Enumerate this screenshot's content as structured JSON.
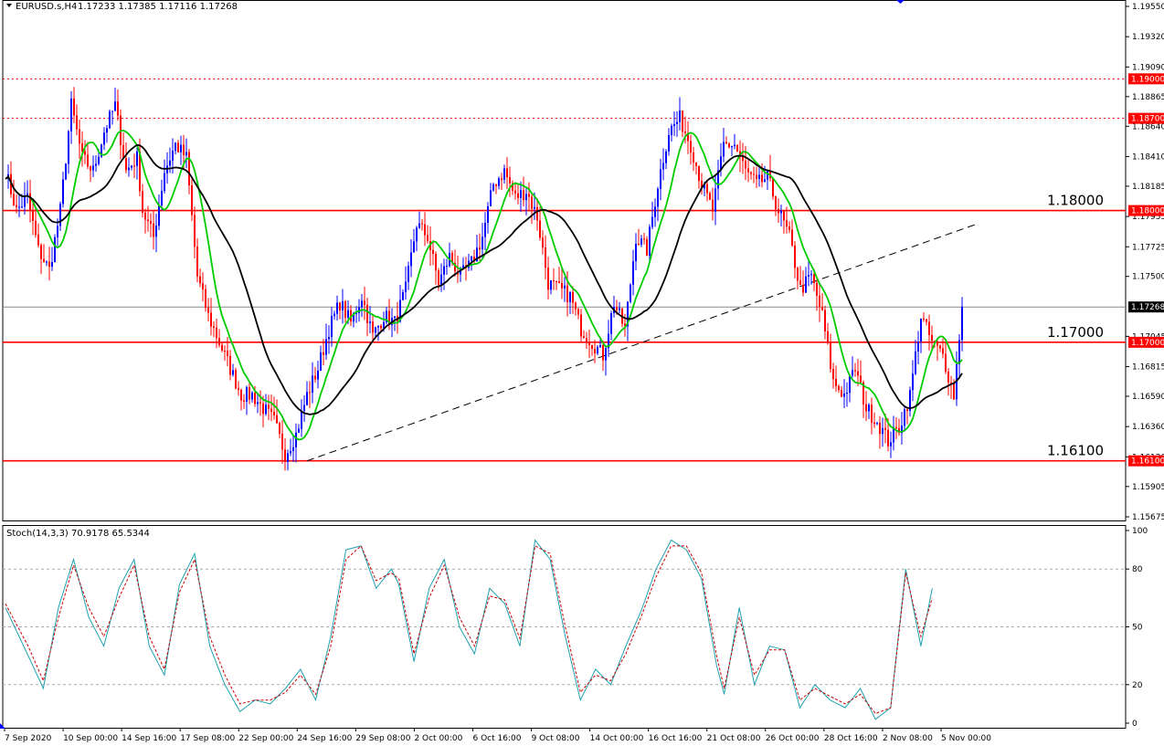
{
  "header": {
    "symbol": "EURUSD.s,H4",
    "ohlc": "1.17233 1.17385 1.17116 1.17268"
  },
  "indicator": {
    "label": "Stoch(14,3,3) 70.9178 65.5344",
    "main_value": 70.9178,
    "signal_value": 65.5344
  },
  "colors": {
    "bull": "#0000ff",
    "bear": "#ff0000",
    "ma_fast": "#00cc00",
    "ma_slow": "#000000",
    "level": "#ff0000",
    "stoch_main": "#20a0b0",
    "stoch_signal": "#cc0000"
  },
  "chart_data": [
    {
      "type": "candlestick",
      "ylim": [
        1.15675,
        1.1955
      ],
      "y_ticks": [
        "1.19550",
        "1.19320",
        "1.19090",
        "1.18865",
        "1.18640",
        "1.18410",
        "1.18185",
        "1.17955",
        "1.17725",
        "1.17500",
        "1.17045",
        "1.16815",
        "1.16590",
        "1.16360",
        "1.16130",
        "1.15905",
        "1.15675"
      ],
      "x_ticks": [
        "7 Sep 2020",
        "10 Sep 00:00",
        "14 Sep 16:00",
        "17 Sep 08:00",
        "22 Sep 00:00",
        "24 Sep 16:00",
        "29 Sep 08:00",
        "2 Oct 00:00",
        "6 Oct 16:00",
        "9 Oct 08:00",
        "14 Oct 00:00",
        "16 Oct 16:00",
        "21 Oct 08:00",
        "26 Oct 00:00",
        "28 Oct 16:00",
        "2 Nov 08:00",
        "5 Nov 00:00"
      ],
      "levels": [
        {
          "price": 1.19,
          "tag": "1.19000",
          "style": "dotted"
        },
        {
          "price": 1.187,
          "tag": "1.18700",
          "style": "dotted"
        },
        {
          "price": 1.18,
          "tag": "1.18000",
          "label": "1.18000",
          "style": "solid"
        },
        {
          "price": 1.17,
          "tag": "1.17000",
          "label": "1.17000",
          "style": "solid"
        },
        {
          "price": 1.161,
          "tag": "1.16100",
          "label": "1.16100",
          "style": "solid"
        }
      ],
      "current_price": {
        "price": 1.17268,
        "tag": "1.17268"
      },
      "trendline": {
        "from": {
          "x": "24 Sep 16:00",
          "y": 1.161
        },
        "to": {
          "x": "5 Nov 00:00",
          "y": 1.179
        }
      },
      "close_anchors": [
        [
          0,
          1.183
        ],
        [
          4,
          1.18
        ],
        [
          8,
          1.181
        ],
        [
          12,
          1.177
        ],
        [
          16,
          1.1755
        ],
        [
          20,
          1.18
        ],
        [
          24,
          1.188
        ],
        [
          28,
          1.184
        ],
        [
          32,
          1.183
        ],
        [
          36,
          1.186
        ],
        [
          40,
          1.188
        ],
        [
          44,
          1.183
        ],
        [
          48,
          1.184
        ],
        [
          50,
          1.18
        ],
        [
          54,
          1.178
        ],
        [
          58,
          1.183
        ],
        [
          62,
          1.185
        ],
        [
          66,
          1.184
        ],
        [
          70,
          1.175
        ],
        [
          74,
          1.172
        ],
        [
          78,
          1.17
        ],
        [
          82,
          1.168
        ],
        [
          86,
          1.166
        ],
        [
          90,
          1.166
        ],
        [
          94,
          1.165
        ],
        [
          98,
          1.164
        ],
        [
          102,
          1.1615
        ],
        [
          106,
          1.163
        ],
        [
          110,
          1.166
        ],
        [
          114,
          1.168
        ],
        [
          118,
          1.171
        ],
        [
          122,
          1.173
        ],
        [
          126,
          1.1715
        ],
        [
          130,
          1.1735
        ],
        [
          134,
          1.1705
        ],
        [
          138,
          1.172
        ],
        [
          142,
          1.1715
        ],
        [
          146,
          1.174
        ],
        [
          150,
          1.179
        ],
        [
          154,
          1.178
        ],
        [
          158,
          1.1745
        ],
        [
          162,
          1.1765
        ],
        [
          166,
          1.175
        ],
        [
          170,
          1.176
        ],
        [
          174,
          1.178
        ],
        [
          178,
          1.182
        ],
        [
          182,
          1.183
        ],
        [
          186,
          1.181
        ],
        [
          190,
          1.1815
        ],
        [
          194,
          1.1795
        ],
        [
          198,
          1.1745
        ],
        [
          202,
          1.174
        ],
        [
          206,
          1.1735
        ],
        [
          210,
          1.171
        ],
        [
          214,
          1.17
        ],
        [
          218,
          1.169
        ],
        [
          222,
          1.173
        ],
        [
          226,
          1.171
        ],
        [
          230,
          1.178
        ],
        [
          234,
          1.177
        ],
        [
          238,
          1.182
        ],
        [
          242,
          1.186
        ],
        [
          246,
          1.187
        ],
        [
          250,
          1.185
        ],
        [
          254,
          1.182
        ],
        [
          258,
          1.18
        ],
        [
          262,
          1.185
        ],
        [
          266,
          1.185
        ],
        [
          270,
          1.183
        ],
        [
          274,
          1.182
        ],
        [
          278,
          1.1825
        ],
        [
          282,
          1.18
        ],
        [
          286,
          1.178
        ],
        [
          290,
          1.174
        ],
        [
          294,
          1.175
        ],
        [
          298,
          1.172
        ],
        [
          302,
          1.167
        ],
        [
          306,
          1.166
        ],
        [
          310,
          1.168
        ],
        [
          314,
          1.165
        ],
        [
          318,
          1.164
        ],
        [
          322,
          1.1625
        ],
        [
          326,
          1.1635
        ],
        [
          330,
          1.166
        ],
        [
          334,
          1.172
        ],
        [
          338,
          1.17
        ],
        [
          342,
          1.169
        ],
        [
          346,
          1.166
        ],
        [
          349,
          1.1727
        ]
      ],
      "series": [
        {
          "name": "EURUSD.s,H4"
        }
      ]
    },
    {
      "type": "line",
      "ylim": [
        0,
        100
      ],
      "y_ticks": [
        "100",
        "80",
        "50",
        "20",
        "0"
      ],
      "dotted_levels": [
        80,
        50,
        20
      ],
      "series": [
        {
          "name": "Stoch main",
          "anchors": [
            [
              0,
              60
            ],
            [
              6,
              35
            ],
            [
              10,
              18
            ],
            [
              14,
              60
            ],
            [
              18,
              85
            ],
            [
              22,
              55
            ],
            [
              26,
              40
            ],
            [
              30,
              70
            ],
            [
              34,
              85
            ],
            [
              38,
              40
            ],
            [
              42,
              25
            ],
            [
              46,
              72
            ],
            [
              50,
              88
            ],
            [
              54,
              40
            ],
            [
              58,
              20
            ],
            [
              62,
              6
            ],
            [
              66,
              12
            ],
            [
              70,
              10
            ],
            [
              74,
              18
            ],
            [
              78,
              28
            ],
            [
              82,
              12
            ],
            [
              86,
              45
            ],
            [
              90,
              90
            ],
            [
              94,
              92
            ],
            [
              98,
              70
            ],
            [
              102,
              80
            ],
            [
              104,
              72
            ],
            [
              108,
              32
            ],
            [
              112,
              70
            ],
            [
              116,
              85
            ],
            [
              120,
              50
            ],
            [
              124,
              36
            ],
            [
              128,
              70
            ],
            [
              132,
              62
            ],
            [
              136,
              40
            ],
            [
              140,
              95
            ],
            [
              144,
              85
            ],
            [
              148,
              45
            ],
            [
              152,
              12
            ],
            [
              156,
              28
            ],
            [
              160,
              20
            ],
            [
              164,
              40
            ],
            [
              168,
              58
            ],
            [
              172,
              80
            ],
            [
              176,
              95
            ],
            [
              180,
              90
            ],
            [
              184,
              75
            ],
            [
              188,
              30
            ],
            [
              190,
              15
            ],
            [
              194,
              60
            ],
            [
              198,
              20
            ],
            [
              202,
              40
            ],
            [
              206,
              38
            ],
            [
              210,
              8
            ],
            [
              214,
              20
            ],
            [
              218,
              12
            ],
            [
              222,
              8
            ],
            [
              226,
              18
            ],
            [
              230,
              2
            ],
            [
              234,
              8
            ],
            [
              238,
              80
            ],
            [
              242,
              40
            ],
            [
              245,
              70
            ]
          ]
        },
        {
          "name": "Stoch signal",
          "anchors": [
            [
              0,
              62
            ],
            [
              6,
              40
            ],
            [
              10,
              22
            ],
            [
              14,
              55
            ],
            [
              18,
              82
            ],
            [
              22,
              60
            ],
            [
              26,
              45
            ],
            [
              30,
              65
            ],
            [
              34,
              82
            ],
            [
              38,
              45
            ],
            [
              42,
              28
            ],
            [
              46,
              68
            ],
            [
              50,
              85
            ],
            [
              54,
              45
            ],
            [
              58,
              25
            ],
            [
              62,
              10
            ],
            [
              66,
              12
            ],
            [
              70,
              12
            ],
            [
              74,
              16
            ],
            [
              78,
              25
            ],
            [
              82,
              15
            ],
            [
              86,
              40
            ],
            [
              90,
              85
            ],
            [
              94,
              92
            ],
            [
              98,
              74
            ],
            [
              102,
              78
            ],
            [
              104,
              75
            ],
            [
              108,
              36
            ],
            [
              112,
              65
            ],
            [
              116,
              82
            ],
            [
              120,
              55
            ],
            [
              124,
              40
            ],
            [
              128,
              66
            ],
            [
              132,
              64
            ],
            [
              136,
              44
            ],
            [
              140,
              92
            ],
            [
              144,
              88
            ],
            [
              148,
              50
            ],
            [
              152,
              16
            ],
            [
              156,
              25
            ],
            [
              160,
              22
            ],
            [
              164,
              36
            ],
            [
              168,
              55
            ],
            [
              172,
              76
            ],
            [
              176,
              92
            ],
            [
              180,
              92
            ],
            [
              184,
              78
            ],
            [
              188,
              35
            ],
            [
              190,
              18
            ],
            [
              194,
              55
            ],
            [
              198,
              25
            ],
            [
              202,
              38
            ],
            [
              206,
              38
            ],
            [
              210,
              12
            ],
            [
              214,
              18
            ],
            [
              218,
              14
            ],
            [
              222,
              10
            ],
            [
              226,
              15
            ],
            [
              230,
              5
            ],
            [
              234,
              8
            ],
            [
              238,
              78
            ],
            [
              242,
              45
            ],
            [
              245,
              65
            ]
          ]
        }
      ]
    }
  ]
}
